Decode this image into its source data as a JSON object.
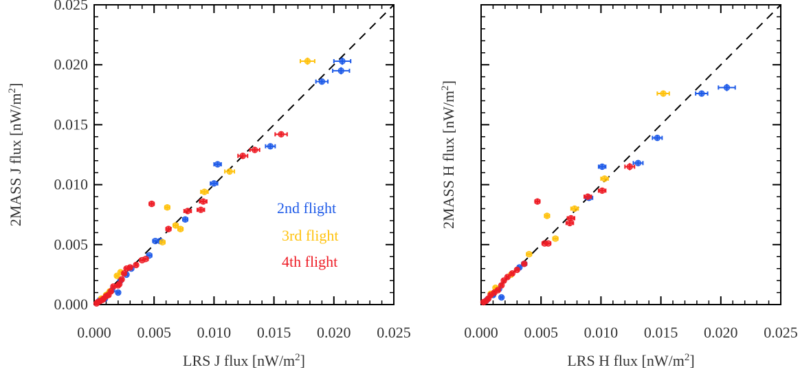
{
  "colors": {
    "2nd": "#1f5be8",
    "3rd": "#ffc20e",
    "4th": "#ee1c25"
  },
  "chart_data": [
    {
      "type": "scatter",
      "xlabel": {
        "main": "LRS J flux [nW/m",
        "sup": "2",
        "end": "]"
      },
      "ylabel": {
        "main": "2MASS J flux [nW/m",
        "sup": "2",
        "end": "]"
      },
      "xlim": [
        0,
        0.025
      ],
      "ylim": [
        0,
        0.025
      ],
      "xticks": [
        "0.000",
        "0.005",
        "0.010",
        "0.015",
        "0.020",
        "0.025"
      ],
      "yticks": [
        "0.000",
        "0.005",
        "0.010",
        "0.015",
        "0.020",
        "0.025"
      ],
      "diagonal": "1:1 dashed line",
      "legend": {
        "placement": "right-middle",
        "entries": [
          {
            "label": "2nd flight",
            "flight": "2nd"
          },
          {
            "label": "3rd flight",
            "flight": "3rd"
          },
          {
            "label": "4th flight",
            "flight": "4th"
          }
        ]
      },
      "series": [
        {
          "flight": "2nd",
          "points": [
            [
              0.0207,
              0.0203,
              0.0007,
              0.0003
            ],
            [
              0.0206,
              0.0195,
              0.0007,
              0.0003
            ],
            [
              0.019,
              0.0186,
              0.0005,
              0.0002
            ],
            [
              0.0147,
              0.0132,
              0.0004,
              0.0002
            ],
            [
              0.0103,
              0.0117,
              0.0003,
              0.0002
            ],
            [
              0.01,
              0.0101,
              0.0003,
              0.0002
            ],
            [
              0.0076,
              0.0071,
              0.0002,
              0.0002
            ],
            [
              0.0055,
              0.0053,
              0.0002,
              0.0001
            ],
            [
              0.0051,
              0.0053,
              0.0002,
              0.0001
            ],
            [
              0.0046,
              0.0041,
              0.0002,
              0.0001
            ],
            [
              0.0031,
              0.003,
              0.0001,
              0.0001
            ],
            [
              0.0027,
              0.0025,
              0.0001,
              0.0001
            ],
            [
              0.0022,
              0.002,
              0.0001,
              0.0001
            ],
            [
              0.002,
              0.001,
              0.0001,
              0.0001
            ],
            [
              0.0015,
              0.0012,
              0.0001,
              0.0001
            ],
            [
              0.0009,
              0.0005,
              0.0001,
              0.0001
            ],
            [
              0.0005,
              0.0004,
              0.0001,
              0.0001
            ],
            [
              0.0003,
              0.0002,
              0.0001,
              0.0001
            ]
          ]
        },
        {
          "flight": "3rd",
          "points": [
            [
              0.0178,
              0.0203,
              0.0006,
              0.0003
            ],
            [
              0.0113,
              0.0111,
              0.0004,
              0.0002
            ],
            [
              0.0092,
              0.0094,
              0.0003,
              0.0002
            ],
            [
              0.0061,
              0.0081,
              0.0002,
              0.0002
            ],
            [
              0.0068,
              0.0066,
              0.0002,
              0.0002
            ],
            [
              0.0072,
              0.0063,
              0.0002,
              0.0002
            ],
            [
              0.0057,
              0.0052,
              0.0002,
              0.0001
            ],
            [
              0.0022,
              0.0027,
              0.0001,
              0.0001
            ],
            [
              0.0019,
              0.0024,
              0.0001,
              0.0001
            ],
            [
              0.0013,
              0.0011,
              0.0001,
              0.0001
            ],
            [
              0.001,
              0.0008,
              0.0001,
              0.0001
            ],
            [
              0.0006,
              0.0005,
              0.0001,
              0.0001
            ]
          ]
        },
        {
          "flight": "4th",
          "points": [
            [
              0.0156,
              0.0142,
              0.0005,
              0.0002
            ],
            [
              0.0134,
              0.0129,
              0.0004,
              0.0002
            ],
            [
              0.0124,
              0.0124,
              0.0004,
              0.0002
            ],
            [
              0.0091,
              0.0086,
              0.0003,
              0.0002
            ],
            [
              0.0089,
              0.0079,
              0.0003,
              0.0002
            ],
            [
              0.0078,
              0.0078,
              0.0003,
              0.0002
            ],
            [
              0.0048,
              0.0084,
              0.0002,
              0.0002
            ],
            [
              0.0062,
              0.0063,
              0.0002,
              0.0002
            ],
            [
              0.0043,
              0.0038,
              0.0002,
              0.0001
            ],
            [
              0.004,
              0.0037,
              0.0002,
              0.0001
            ],
            [
              0.0035,
              0.0033,
              0.0001,
              0.0001
            ],
            [
              0.003,
              0.0031,
              0.0001,
              0.0001
            ],
            [
              0.0027,
              0.003,
              0.0001,
              0.0001
            ],
            [
              0.0025,
              0.0026,
              0.0001,
              0.0001
            ],
            [
              0.0023,
              0.0021,
              0.0001,
              0.0001
            ],
            [
              0.002,
              0.0016,
              0.0001,
              0.0001
            ],
            [
              0.0021,
              0.0017,
              0.0001,
              0.0001
            ],
            [
              0.0016,
              0.0015,
              0.0001,
              0.0001
            ],
            [
              0.0014,
              0.0011,
              0.0001,
              0.0001
            ],
            [
              0.0012,
              0.0008,
              0.0001,
              0.0001
            ],
            [
              0.001,
              0.0007,
              0.0001,
              0.0001
            ],
            [
              0.0008,
              0.0005,
              0.0001,
              0.0001
            ],
            [
              0.0007,
              0.0004,
              0.0001,
              0.0001
            ],
            [
              0.0005,
              0.0003,
              0.0001,
              0.0001
            ],
            [
              0.0003,
              0.0002,
              0.0001,
              0.0001
            ],
            [
              0.0002,
              0.0001,
              0.0001,
              0.0001
            ]
          ]
        }
      ]
    },
    {
      "type": "scatter",
      "xlabel": {
        "main": "LRS H flux [nW/m",
        "sup": "2",
        "end": "]"
      },
      "ylabel": {
        "main": "2MASS H flux [nW/m",
        "sup": "2",
        "end": "]"
      },
      "xlim": [
        0,
        0.025
      ],
      "ylim": [
        0,
        0.025
      ],
      "xticks": [
        "0.000",
        "0.005",
        "0.010",
        "0.015",
        "0.020",
        "0.025"
      ],
      "yticks": [],
      "diagonal": "1:1 dashed line",
      "series": [
        {
          "flight": "2nd",
          "points": [
            [
              0.0205,
              0.0181,
              0.0007,
              0.0003
            ],
            [
              0.0184,
              0.0176,
              0.0005,
              0.0002
            ],
            [
              0.0147,
              0.0139,
              0.0004,
              0.0002
            ],
            [
              0.0131,
              0.0118,
              0.0004,
              0.0002
            ],
            [
              0.0101,
              0.0115,
              0.0003,
              0.0002
            ],
            [
              0.009,
              0.0089,
              0.0003,
              0.0002
            ],
            [
              0.0036,
              0.0034,
              0.0002,
              0.0001
            ],
            [
              0.0032,
              0.0031,
              0.0001,
              0.0001
            ],
            [
              0.0017,
              0.0006,
              0.0001,
              0.0001
            ],
            [
              0.0015,
              0.0013,
              0.0001,
              0.0001
            ],
            [
              0.001,
              0.0008,
              0.0001,
              0.0001
            ],
            [
              0.0005,
              0.0004,
              0.0001,
              0.0001
            ]
          ]
        },
        {
          "flight": "3rd",
          "points": [
            [
              0.0152,
              0.0176,
              0.0005,
              0.0002
            ],
            [
              0.0103,
              0.0105,
              0.0003,
              0.0002
            ],
            [
              0.0078,
              0.008,
              0.0003,
              0.0002
            ],
            [
              0.0055,
              0.0074,
              0.0002,
              0.0002
            ],
            [
              0.0062,
              0.0055,
              0.0002,
              0.0001
            ],
            [
              0.004,
              0.0042,
              0.0002,
              0.0001
            ],
            [
              0.0025,
              0.0025,
              0.0001,
              0.0001
            ],
            [
              0.0012,
              0.0014,
              0.0001,
              0.0001
            ],
            [
              0.0008,
              0.0009,
              0.0001,
              0.0001
            ]
          ]
        },
        {
          "flight": "4th",
          "points": [
            [
              0.0124,
              0.0115,
              0.0004,
              0.0003
            ],
            [
              0.0101,
              0.0095,
              0.0003,
              0.0002
            ],
            [
              0.0089,
              0.009,
              0.0003,
              0.0002
            ],
            [
              0.0075,
              0.0072,
              0.0003,
              0.0002
            ],
            [
              0.0074,
              0.0068,
              0.0003,
              0.0002
            ],
            [
              0.0047,
              0.0086,
              0.0002,
              0.0002
            ],
            [
              0.0053,
              0.0051,
              0.0002,
              0.0001
            ],
            [
              0.0056,
              0.0051,
              0.0002,
              0.0001
            ],
            [
              0.0036,
              0.0034,
              0.0001,
              0.0001
            ],
            [
              0.003,
              0.0029,
              0.0001,
              0.0001
            ],
            [
              0.0026,
              0.0026,
              0.0001,
              0.0001
            ],
            [
              0.0022,
              0.0023,
              0.0001,
              0.0001
            ],
            [
              0.0019,
              0.002,
              0.0001,
              0.0001
            ],
            [
              0.0017,
              0.0016,
              0.0001,
              0.0001
            ],
            [
              0.0014,
              0.0012,
              0.0001,
              0.0001
            ],
            [
              0.0011,
              0.001,
              0.0001,
              0.0001
            ],
            [
              0.0008,
              0.0008,
              0.0001,
              0.0001
            ],
            [
              0.0006,
              0.0005,
              0.0001,
              0.0001
            ],
            [
              0.0004,
              0.0003,
              0.0001,
              0.0001
            ],
            [
              0.0002,
              0.0002,
              0.0001,
              0.0001
            ]
          ]
        }
      ]
    }
  ]
}
